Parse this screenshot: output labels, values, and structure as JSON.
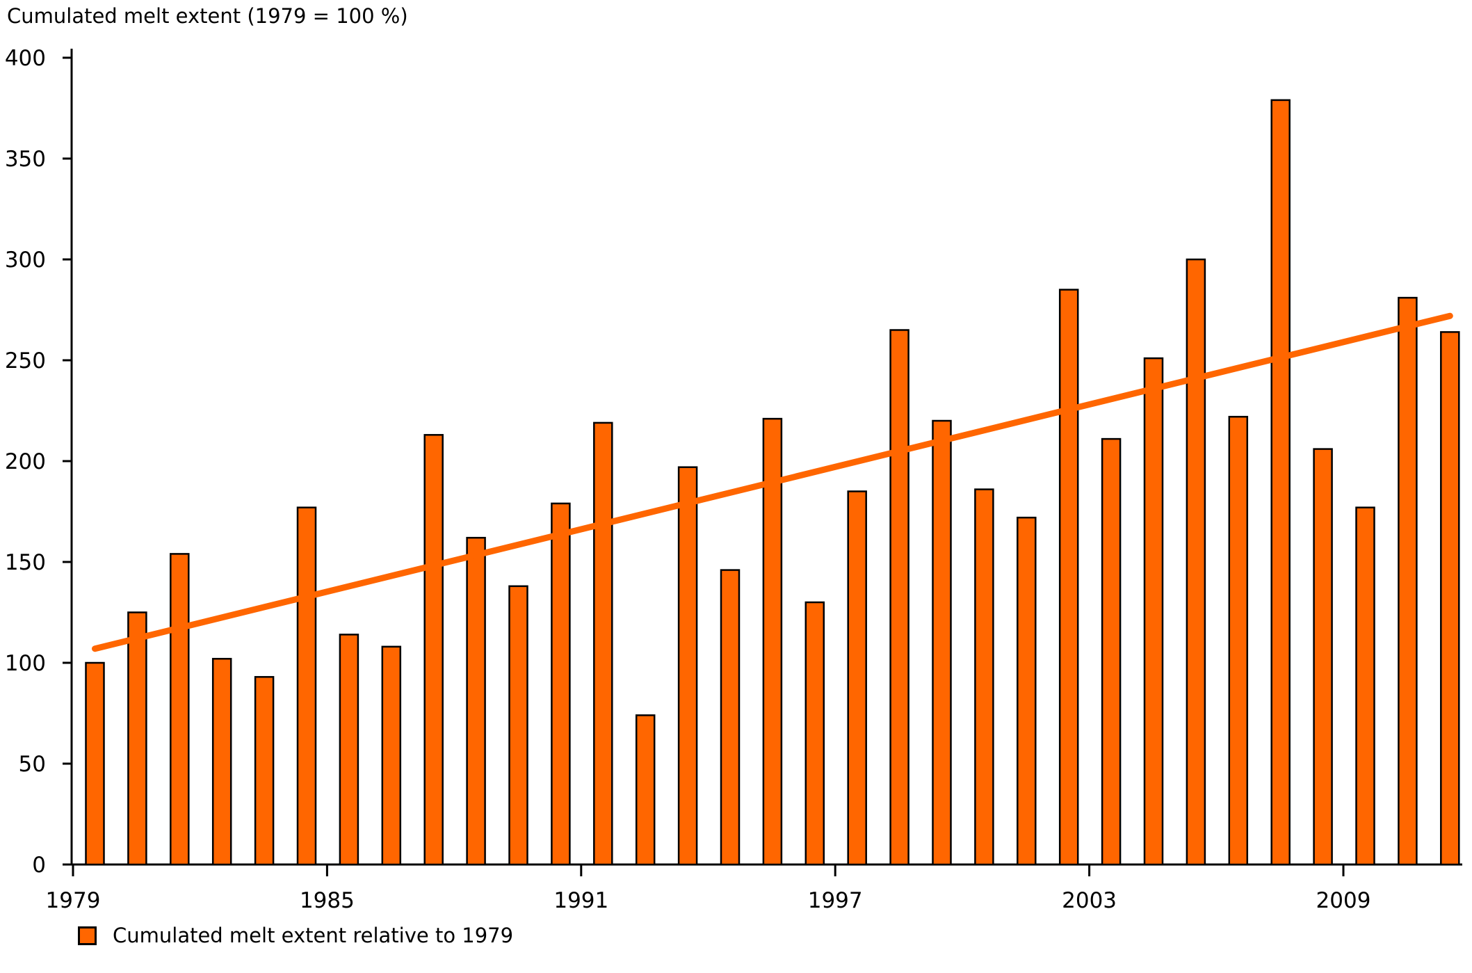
{
  "title": "Cumulated melt extent (1979 = 100 %)",
  "legend": {
    "label": "Cumulated melt extent relative to 1979",
    "swatch_color": "#FF6600"
  },
  "colors": {
    "bar_fill": "#FF6600",
    "bar_outline": "#000000",
    "trend_line": "#FF6600",
    "axis": "#000000",
    "text": "#000000",
    "background": "#FFFFFF"
  },
  "chart_data": {
    "type": "bar",
    "title": "Cumulated melt extent (1979 = 100 %)",
    "series_label": "Cumulated melt extent relative to 1979",
    "categories": [
      1979,
      1980,
      1981,
      1982,
      1983,
      1984,
      1985,
      1986,
      1987,
      1988,
      1989,
      1990,
      1991,
      1992,
      1993,
      1994,
      1995,
      1996,
      1997,
      1998,
      1999,
      2000,
      2001,
      2002,
      2003,
      2004,
      2005,
      2006,
      2007,
      2008,
      2009,
      2010,
      2011
    ],
    "values": [
      100,
      125,
      154,
      102,
      93,
      177,
      114,
      108,
      213,
      162,
      138,
      179,
      219,
      74,
      197,
      146,
      221,
      130,
      185,
      265,
      220,
      186,
      172,
      285,
      211,
      251,
      300,
      222,
      379,
      206,
      177,
      281,
      264
    ],
    "trend_line": {
      "start": {
        "year": 1979,
        "value": 107
      },
      "end": {
        "year": 2011,
        "value": 272
      }
    },
    "y_axis": {
      "min": 0,
      "max": 400,
      "tick_interval": 50,
      "ticks": [
        0,
        50,
        100,
        150,
        200,
        250,
        300,
        350,
        400
      ]
    },
    "x_axis": {
      "tick_years": [
        1979,
        1985,
        1991,
        1997,
        2003,
        2009
      ]
    },
    "grid": false,
    "legend_position": "bottom-left"
  }
}
